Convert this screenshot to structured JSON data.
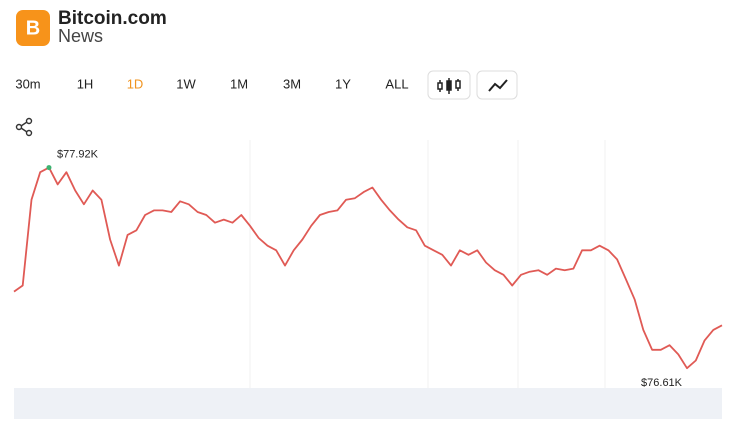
{
  "header": {
    "logo_mark": "B",
    "brand": "Bitcoin.com",
    "section": "News"
  },
  "timeframes": {
    "options": [
      "30m",
      "1H",
      "1D",
      "1W",
      "1M",
      "3M",
      "1Y",
      "ALL"
    ],
    "active": "1D"
  },
  "chart_data": {
    "type": "line",
    "color": "#e05a55",
    "values": [
      77110,
      77150,
      77710,
      77890,
      77920,
      77810,
      77890,
      77770,
      77680,
      77770,
      77710,
      77450,
      77280,
      77480,
      77510,
      77610,
      77640,
      77640,
      77630,
      77700,
      77680,
      77630,
      77610,
      77560,
      77580,
      77560,
      77610,
      77540,
      77460,
      77410,
      77380,
      77280,
      77380,
      77450,
      77540,
      77610,
      77630,
      77640,
      77710,
      77720,
      77760,
      77790,
      77710,
      77640,
      77580,
      77530,
      77510,
      77410,
      77380,
      77350,
      77280,
      77380,
      77350,
      77380,
      77300,
      77250,
      77220,
      77150,
      77220,
      77240,
      77250,
      77220,
      77260,
      77250,
      77260,
      77380,
      77380,
      77410,
      77380,
      77320,
      77190,
      77060,
      76860,
      76730,
      76730,
      76760,
      76700,
      76610,
      76660,
      76790,
      76860,
      76890
    ],
    "ylim": [
      76500,
      78100
    ],
    "annotations": [
      {
        "label": "$77.92K",
        "value": 77920
      },
      {
        "label": "$76.61K",
        "value": 76610
      }
    ]
  }
}
